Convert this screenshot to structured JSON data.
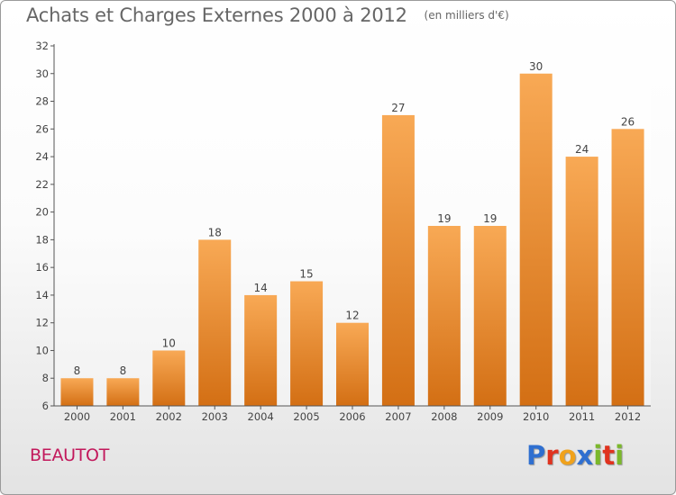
{
  "header": {
    "title": "Achats et Charges Externes 2000 à 2012",
    "unit": "(en milliers d'€)"
  },
  "footer": {
    "city": "BEAUTOT",
    "logo": "Proxiti"
  },
  "colors": {
    "bar_light": "#f8a955",
    "bar_dark": "#d36f14",
    "title": "#666666",
    "city": "#c2185b",
    "logo_letters": [
      "#2f6fd0",
      "#e0331f",
      "#f0a21c",
      "#2f6fd0",
      "#7bb82b",
      "#e0331f",
      "#7bb82b"
    ]
  },
  "chart_data": {
    "type": "bar",
    "title": "Achats et Charges Externes 2000 à 2012",
    "subtitle": "(en milliers d'€)",
    "categories": [
      "2000",
      "2001",
      "2002",
      "2003",
      "2004",
      "2005",
      "2006",
      "2007",
      "2008",
      "2009",
      "2010",
      "2011",
      "2012"
    ],
    "values": [
      8,
      8,
      10,
      18,
      14,
      15,
      12,
      27,
      19,
      19,
      30,
      24,
      26
    ],
    "ylim": [
      6,
      32
    ],
    "yticks": [
      6,
      8,
      10,
      12,
      14,
      16,
      18,
      20,
      22,
      24,
      26,
      28,
      30,
      32
    ],
    "grid": false,
    "legend": "none",
    "data_labels": true
  }
}
